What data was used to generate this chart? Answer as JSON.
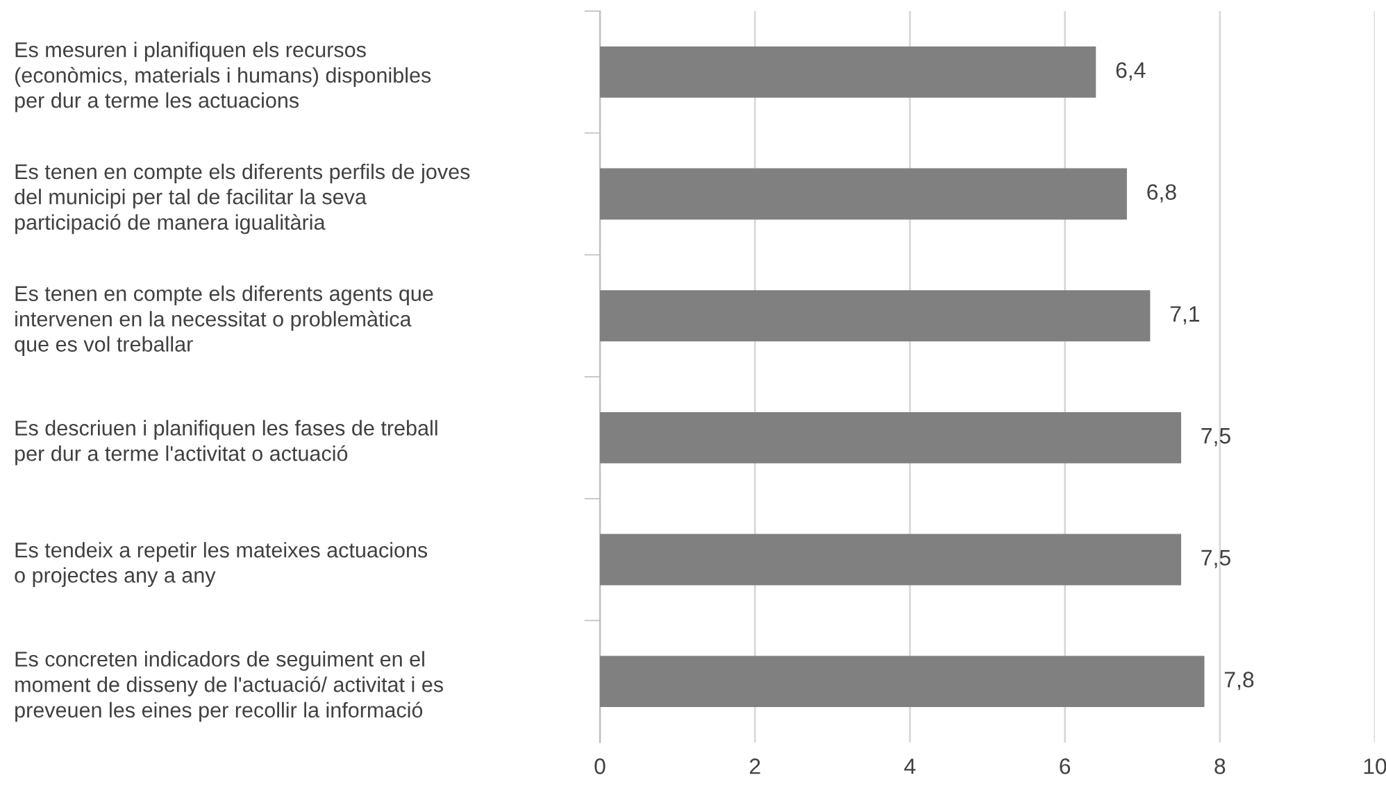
{
  "chart_data": {
    "type": "bar",
    "orientation": "horizontal",
    "categories": [
      "Es mesuren i planifiquen els recursos\n(econòmics, materials i humans) disponibles\nper dur a terme les actuacions",
      "Es tenen en compte els diferents perfils de joves\ndel municipi per tal de facilitar la seva\nparticipació de manera igualitària",
      "Es tenen en compte els diferents agents que\nintervenen en la necessitat o problemàtica\nque es vol treballar",
      "Es descriuen i planifiquen les fases de treball\nper dur a terme l'activitat o actuació",
      "Es tendeix a repetir les mateixes actuacions\no projectes any a any",
      "Es concreten indicadors de seguiment en el\nmoment de disseny de l'actuació/ activitat i es\npreveuen les eines per recollir la informació"
    ],
    "values": [
      6.4,
      6.8,
      7.1,
      7.5,
      7.5,
      7.8
    ],
    "value_labels": [
      "6,4",
      "6,8",
      "7,1",
      "7,5",
      "7,5",
      "7,8"
    ],
    "color": "#808080",
    "xlim": [
      0,
      10
    ],
    "xticks": [
      0,
      2,
      4,
      6,
      8,
      10
    ],
    "grid": "x"
  }
}
